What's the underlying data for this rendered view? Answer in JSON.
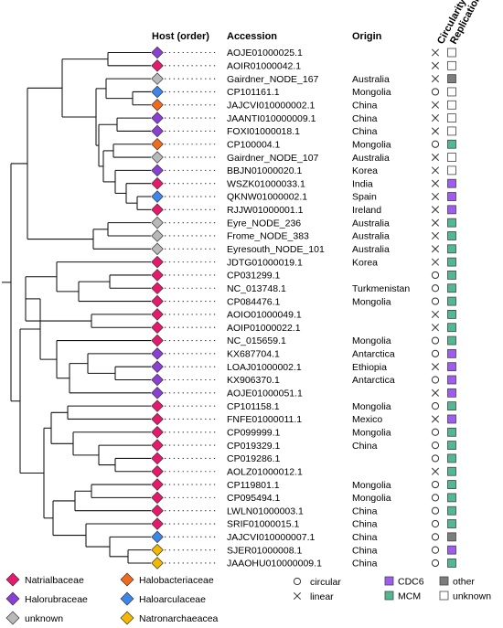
{
  "headers": {
    "host": "Host (order)",
    "accession": "Accession",
    "origin": "Origin",
    "circularity": "Circularity",
    "replication": "Replication"
  },
  "host_colors": {
    "Natrialbaceae": "#e8186d",
    "Halorubraceae": "#8c3fd4",
    "unknown": "#b9b9b9",
    "Halobacteriaceae": "#f26a1b",
    "Haloarculaceae": "#3d86ea",
    "Natronarchaeacea": "#f5b800"
  },
  "replication_colors": {
    "CDC6": "#a05cf0",
    "MCM": "#52b893",
    "other": "#7d7d7d",
    "unknown": "#ffffff"
  },
  "rows": [
    {
      "host": "Halorubraceae",
      "accession": "AOJE01000025.1",
      "origin": "",
      "circularity": "linear",
      "replication": "unknown"
    },
    {
      "host": "Natrialbaceae",
      "accession": "AOIR01000042.1",
      "origin": "",
      "circularity": "linear",
      "replication": "unknown"
    },
    {
      "host": "unknown",
      "accession": "Gairdner_NODE_167",
      "origin": "Australia",
      "circularity": "linear",
      "replication": "other"
    },
    {
      "host": "Haloarculaceae",
      "accession": "CP101161.1",
      "origin": "Mongolia",
      "circularity": "circular",
      "replication": "unknown"
    },
    {
      "host": "Halobacteriaceae",
      "accession": "JAJCVI010000002.1",
      "origin": "China",
      "circularity": "linear",
      "replication": "unknown"
    },
    {
      "host": "Halorubraceae",
      "accession": "JAANTI010000009.1",
      "origin": "China",
      "circularity": "linear",
      "replication": "unknown"
    },
    {
      "host": "Halorubraceae",
      "accession": "FOXI01000018.1",
      "origin": "China",
      "circularity": "linear",
      "replication": "unknown"
    },
    {
      "host": "Halobacteriaceae",
      "accession": "CP100004.1",
      "origin": "Mongolia",
      "circularity": "circular",
      "replication": "MCM"
    },
    {
      "host": "unknown",
      "accession": "Gairdner_NODE_107",
      "origin": "Australia",
      "circularity": "linear",
      "replication": "unknown"
    },
    {
      "host": "Halorubraceae",
      "accession": "BBJN01000020.1",
      "origin": "Korea",
      "circularity": "linear",
      "replication": "unknown"
    },
    {
      "host": "Natrialbaceae",
      "accession": "WSZK01000033.1",
      "origin": "India",
      "circularity": "linear",
      "replication": "CDC6"
    },
    {
      "host": "Haloarculaceae",
      "accession": "QKNW01000002.1",
      "origin": "Spain",
      "circularity": "linear",
      "replication": "CDC6"
    },
    {
      "host": "Natrialbaceae",
      "accession": "RJJW01000001.1",
      "origin": "Ireland",
      "circularity": "linear",
      "replication": "CDC6"
    },
    {
      "host": "unknown",
      "accession": "Eyre_NODE_236",
      "origin": "Australia",
      "circularity": "linear",
      "replication": "MCM"
    },
    {
      "host": "unknown",
      "accession": "Frome_NODE_383",
      "origin": "Australia",
      "circularity": "linear",
      "replication": "MCM"
    },
    {
      "host": "unknown",
      "accession": "Eyresouth_NODE_101",
      "origin": "Australia",
      "circularity": "linear",
      "replication": "MCM"
    },
    {
      "host": "Natrialbaceae",
      "accession": "JDTG01000019.1",
      "origin": "Korea",
      "circularity": "linear",
      "replication": "MCM"
    },
    {
      "host": "Natrialbaceae",
      "accession": "CP031299.1",
      "origin": "",
      "circularity": "circular",
      "replication": "MCM"
    },
    {
      "host": "Natrialbaceae",
      "accession": "NC_013748.1",
      "origin": "Turkmenistan",
      "circularity": "circular",
      "replication": "MCM"
    },
    {
      "host": "Natrialbaceae",
      "accession": "CP084476.1",
      "origin": "Mongolia",
      "circularity": "circular",
      "replication": "MCM"
    },
    {
      "host": "Natrialbaceae",
      "accession": "AOIO01000049.1",
      "origin": "",
      "circularity": "linear",
      "replication": "MCM"
    },
    {
      "host": "Natrialbaceae",
      "accession": "AOIP01000022.1",
      "origin": "",
      "circularity": "linear",
      "replication": "MCM"
    },
    {
      "host": "Natrialbaceae",
      "accession": "NC_015659.1",
      "origin": "Mongolia",
      "circularity": "circular",
      "replication": "MCM"
    },
    {
      "host": "Halorubraceae",
      "accession": "KX687704.1",
      "origin": "Antarctica",
      "circularity": "circular",
      "replication": "CDC6"
    },
    {
      "host": "Halorubraceae",
      "accession": "LOAJ01000002.1",
      "origin": "Ethiopia",
      "circularity": "linear",
      "replication": "CDC6"
    },
    {
      "host": "Halorubraceae",
      "accession": "KX906370.1",
      "origin": "Antarctica",
      "circularity": "circular",
      "replication": "CDC6"
    },
    {
      "host": "Halorubraceae",
      "accession": "AOJE01000051.1",
      "origin": "",
      "circularity": "linear",
      "replication": "CDC6"
    },
    {
      "host": "Natrialbaceae",
      "accession": "CP101158.1",
      "origin": "Mongolia",
      "circularity": "circular",
      "replication": "MCM"
    },
    {
      "host": "Natrialbaceae",
      "accession": "FNFE01000011.1",
      "origin": "Mexico",
      "circularity": "linear",
      "replication": "CDC6"
    },
    {
      "host": "Natrialbaceae",
      "accession": "CP099999.1",
      "origin": "Mongolia",
      "circularity": "circular",
      "replication": "MCM"
    },
    {
      "host": "Natrialbaceae",
      "accession": "CP019329.1",
      "origin": "China",
      "circularity": "circular",
      "replication": "MCM"
    },
    {
      "host": "Natrialbaceae",
      "accession": "CP019286.1",
      "origin": "",
      "circularity": "circular",
      "replication": "MCM"
    },
    {
      "host": "Natrialbaceae",
      "accession": "AOLZ01000012.1",
      "origin": "",
      "circularity": "linear",
      "replication": "MCM"
    },
    {
      "host": "Natrialbaceae",
      "accession": "CP119801.1",
      "origin": "Mongolia",
      "circularity": "circular",
      "replication": "MCM"
    },
    {
      "host": "Natrialbaceae",
      "accession": "CP095494.1",
      "origin": "Mongolia",
      "circularity": "circular",
      "replication": "MCM"
    },
    {
      "host": "Natrialbaceae",
      "accession": "LWLN01000003.1",
      "origin": "China",
      "circularity": "circular",
      "replication": "MCM"
    },
    {
      "host": "Natrialbaceae",
      "accession": "SRIF01000015.1",
      "origin": "China",
      "circularity": "circular",
      "replication": "MCM"
    },
    {
      "host": "Haloarculaceae",
      "accession": "JAJCVI010000007.1",
      "origin": "China",
      "circularity": "circular",
      "replication": "other"
    },
    {
      "host": "Natronarchaeacea",
      "accession": "SJER01000008.1",
      "origin": "China",
      "circularity": "circular",
      "replication": "CDC6"
    },
    {
      "host": "Natronarchaeacea",
      "accession": "JAAOHU010000009.1",
      "origin": "China",
      "circularity": "circular",
      "replication": "MCM"
    }
  ],
  "legend": {
    "hosts": [
      "Natrialbaceae",
      "Halobacteriaceae",
      "Halorubraceae",
      "Haloarculaceae",
      "unknown",
      "Natronarchaeacea"
    ],
    "circularity": [
      {
        "symbol": "circular",
        "label": "circular"
      },
      {
        "symbol": "linear",
        "label": "linear"
      }
    ],
    "replication": [
      {
        "key": "CDC6",
        "label": "CDC6"
      },
      {
        "key": "other",
        "label": "other"
      },
      {
        "key": "MCM",
        "label": "MCM"
      },
      {
        "key": "unknown",
        "label": "unknown"
      }
    ]
  }
}
